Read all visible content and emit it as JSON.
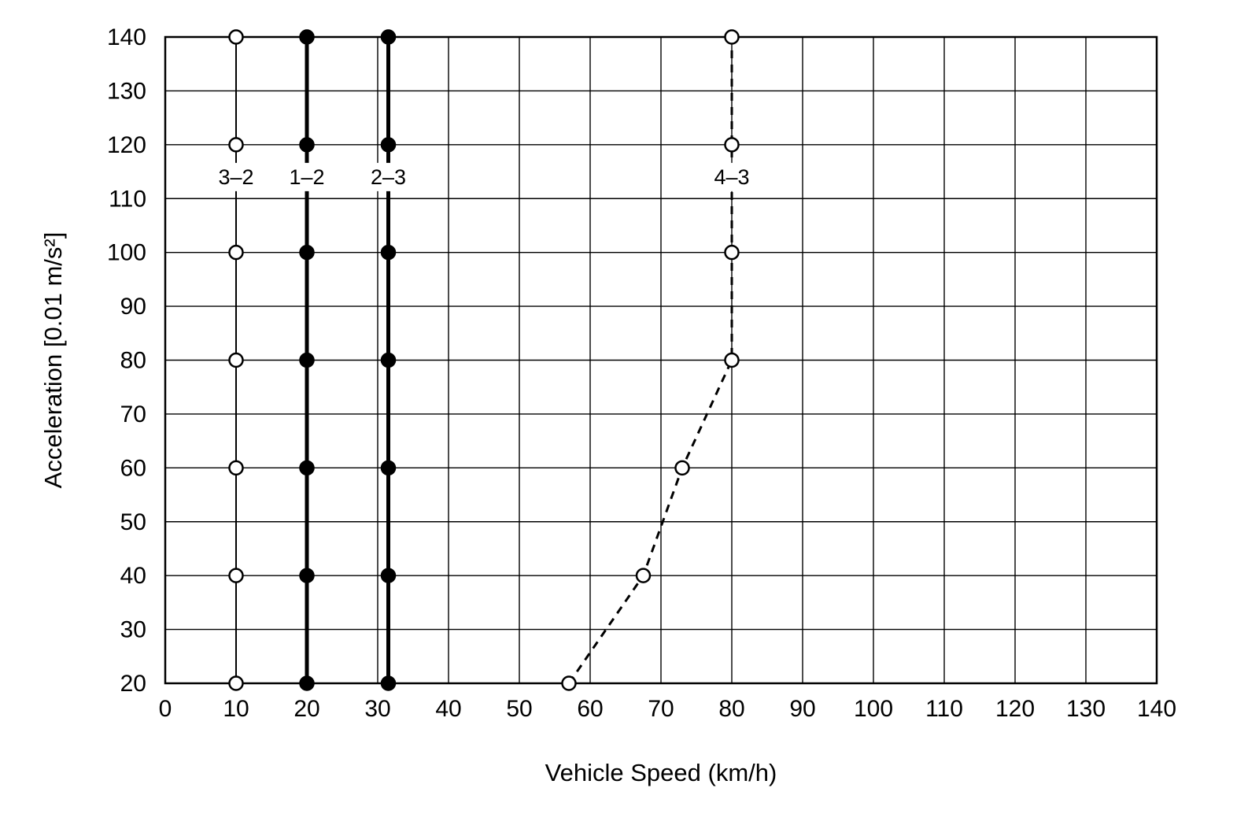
{
  "chart_data": {
    "type": "line",
    "title": "",
    "xlabel": "Vehicle Speed (km/h)",
    "ylabel": "Acceleration [0.01 m/s²]",
    "xlim": [
      0,
      140
    ],
    "ylim": [
      20,
      140
    ],
    "xticks": [
      0,
      10,
      20,
      30,
      40,
      50,
      60,
      70,
      80,
      90,
      100,
      110,
      120,
      130,
      140
    ],
    "yticks": [
      20,
      30,
      40,
      50,
      60,
      70,
      80,
      90,
      100,
      110,
      120,
      130,
      140
    ],
    "grid": true,
    "legend_position": "none",
    "background": "#ffffff",
    "line_color": "#000000",
    "series": [
      {
        "name": "3-2",
        "label": "3–2",
        "x": [
          10,
          10,
          10,
          10,
          10,
          10,
          10
        ],
        "y": [
          20,
          40,
          60,
          80,
          100,
          120,
          140
        ],
        "marker": "open-circle",
        "line_style": "solid",
        "line_width": 2,
        "label_x": 10,
        "label_y": 114
      },
      {
        "name": "1-2",
        "label": "1–2",
        "x": [
          20,
          20,
          20,
          20,
          20,
          20,
          20
        ],
        "y": [
          20,
          40,
          60,
          80,
          100,
          120,
          140
        ],
        "marker": "filled-circle",
        "line_style": "solid",
        "line_width": 5,
        "label_x": 20,
        "label_y": 114
      },
      {
        "name": "2-3",
        "label": "2–3",
        "x": [
          31.5,
          31.5,
          31.5,
          31.5,
          31.5,
          31.5,
          31.5
        ],
        "y": [
          20,
          40,
          60,
          80,
          100,
          120,
          140
        ],
        "marker": "filled-circle",
        "line_style": "solid",
        "line_width": 5,
        "label_x": 31.5,
        "label_y": 114
      },
      {
        "name": "4-3",
        "label": "4–3",
        "x": [
          57,
          67.5,
          73,
          80,
          80,
          80,
          80
        ],
        "y": [
          20,
          40,
          60,
          80,
          100,
          120,
          140
        ],
        "marker": "open-circle",
        "line_style": "dashed",
        "line_width": 3,
        "label_x": 80,
        "label_y": 114
      }
    ]
  }
}
